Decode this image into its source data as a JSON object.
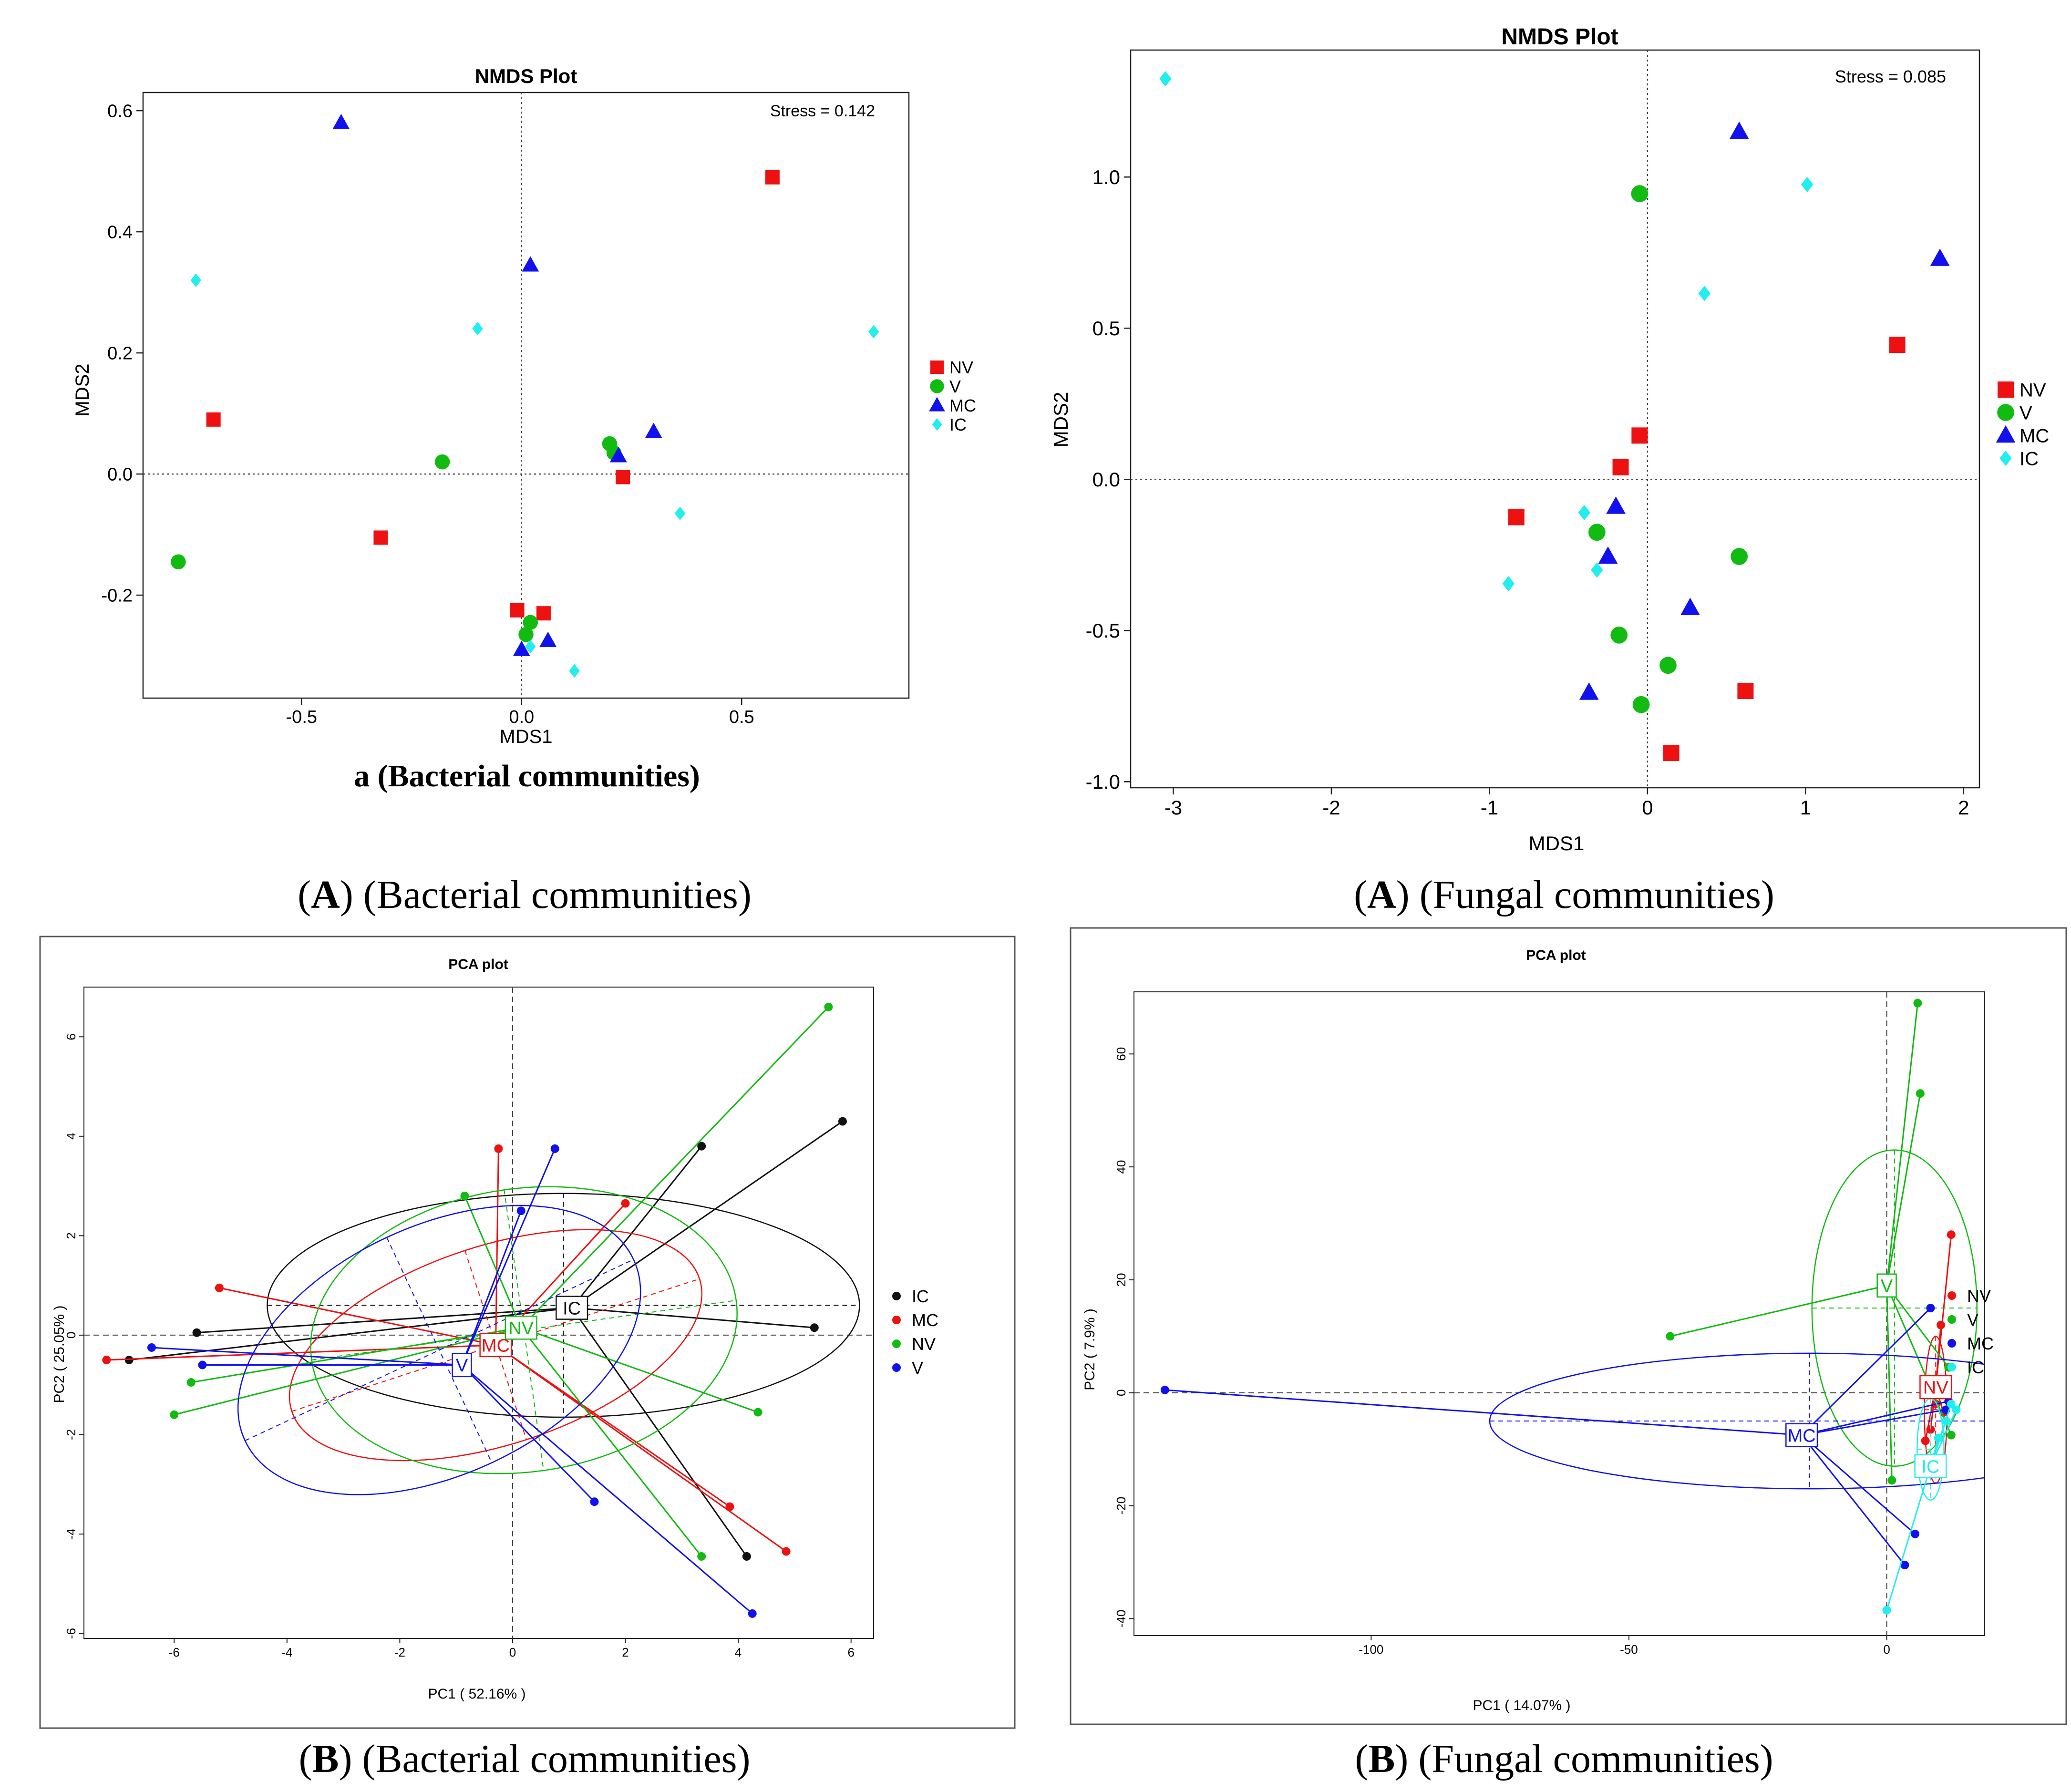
{
  "captions": {
    "a_inner": "a (Bacterial communities)",
    "tl_letter": "A",
    "tl_text": " (Bacterial communities)",
    "tr_letter": "A",
    "tr_text": " (Fungal communities)",
    "bl_letter": "B",
    "bl_text": " (Bacterial communities)",
    "br_letter": "B",
    "br_text": " (Fungal communities)"
  },
  "colors": {
    "red": "#ee1111",
    "green": "#11bb11",
    "blue": "#1111ee",
    "cyan": "#22eeee",
    "black": "#111111"
  },
  "chart_data": [
    {
      "id": "bact_nmds",
      "type": "scatter",
      "title": "NMDS Plot",
      "xlabel": "MDS1",
      "ylabel": "MDS2",
      "stress": "Stress = 0.142",
      "xlim": [
        -0.86,
        0.88
      ],
      "ylim": [
        -0.37,
        0.63
      ],
      "xticks": [
        -0.5,
        0.0,
        0.5
      ],
      "xtick_labels": [
        "-0.5",
        "0.0",
        "0.5"
      ],
      "yticks": [
        -0.2,
        0.0,
        0.2,
        0.4,
        0.6
      ],
      "ytick_labels": [
        "-0.2",
        "0.0",
        "0.2",
        "0.4",
        "0.6"
      ],
      "legend_position": "right",
      "legend": [
        "NV",
        "V",
        "MC",
        "IC"
      ],
      "series": [
        {
          "name": "NV",
          "shape": "square",
          "color": "red",
          "x": [
            0.57,
            -0.7,
            -0.32,
            0.23,
            -0.01,
            0.05
          ],
          "y": [
            0.49,
            0.09,
            -0.105,
            -0.005,
            -0.225,
            -0.23
          ]
        },
        {
          "name": "V",
          "shape": "circle",
          "color": "green",
          "x": [
            -0.18,
            -0.78,
            0.2,
            0.21,
            0.02,
            0.01
          ],
          "y": [
            0.02,
            -0.145,
            0.05,
            0.035,
            -0.245,
            -0.265
          ]
        },
        {
          "name": "MC",
          "shape": "triangle",
          "color": "blue",
          "x": [
            -0.41,
            0.02,
            0.3,
            0.22,
            0.0,
            0.06
          ],
          "y": [
            0.58,
            0.345,
            0.07,
            0.03,
            -0.29,
            -0.275
          ]
        },
        {
          "name": "IC",
          "shape": "diamond",
          "color": "cyan",
          "x": [
            -0.74,
            -0.1,
            0.8,
            0.36,
            0.12,
            0.02
          ],
          "y": [
            0.32,
            0.24,
            0.235,
            -0.065,
            -0.325,
            -0.285
          ]
        }
      ]
    },
    {
      "id": "fung_nmds",
      "type": "scatter",
      "title": "NMDS Plot",
      "xlabel": "MDS1",
      "ylabel": "MDS2",
      "stress": "Stress = 0.085",
      "xlim": [
        -3.27,
        2.1
      ],
      "ylim": [
        -1.02,
        1.42
      ],
      "xticks": [
        -3,
        -2,
        -1,
        0,
        1,
        2
      ],
      "xtick_labels": [
        "-3",
        "-2",
        "-1",
        "0",
        "1",
        "2"
      ],
      "yticks": [
        -1.0,
        -0.5,
        0.0,
        0.5,
        1.0
      ],
      "ytick_labels": [
        "-1.0",
        "-0.5",
        "0.0",
        "0.5",
        "1.0"
      ],
      "legend_position": "right",
      "legend": [
        "NV",
        "V",
        "MC",
        "IC"
      ],
      "series": [
        {
          "name": "NV",
          "shape": "square",
          "color": "red",
          "x": [
            1.58,
            -0.05,
            -0.17,
            -0.83,
            0.62,
            0.15
          ],
          "y": [
            0.445,
            0.145,
            0.04,
            -0.125,
            -0.7,
            -0.905
          ]
        },
        {
          "name": "V",
          "shape": "circle",
          "color": "green",
          "x": [
            -0.05,
            -0.32,
            0.58,
            -0.18,
            0.13,
            -0.04
          ],
          "y": [
            0.945,
            -0.175,
            -0.255,
            -0.515,
            -0.615,
            -0.745
          ]
        },
        {
          "name": "MC",
          "shape": "triangle",
          "color": "blue",
          "x": [
            0.58,
            1.85,
            -0.2,
            -0.25,
            0.27,
            -0.37
          ],
          "y": [
            1.15,
            0.73,
            -0.09,
            -0.255,
            -0.425,
            -0.705
          ]
        },
        {
          "name": "IC",
          "shape": "diamond",
          "color": "cyan",
          "x": [
            -3.05,
            1.01,
            0.36,
            -0.4,
            -0.88,
            -0.32
          ],
          "y": [
            1.325,
            0.975,
            0.615,
            -0.11,
            -0.345,
            -0.3
          ]
        }
      ]
    },
    {
      "id": "bact_pca",
      "type": "scatter",
      "title": "PCA plot",
      "xlabel": "PC1 ( 52.16% )",
      "ylabel": "PC2 ( 25.05% )",
      "xlim": [
        -7.6,
        6.4
      ],
      "ylim": [
        -6.1,
        7.0
      ],
      "xticks": [
        -6,
        -4,
        -2,
        0,
        2,
        4,
        6
      ],
      "xtick_labels": [
        "-6",
        "-4",
        "-2",
        "0",
        "2",
        "4",
        "6"
      ],
      "yticks": [
        -6,
        -4,
        -2,
        0,
        2,
        4,
        6
      ],
      "ytick_labels": [
        "-6",
        "-4",
        "-2",
        "0",
        "2",
        "4",
        "6"
      ],
      "legend_position": "right",
      "legend": [
        "IC",
        "MC",
        "NV",
        "V"
      ],
      "groups": [
        {
          "name": "IC",
          "color": "black",
          "centroid": [
            1.05,
            0.55
          ],
          "ellipse": {
            "cx": 0.9,
            "cy": 0.6,
            "rx": 5.25,
            "ry": 2.25,
            "angle": 0
          },
          "points": [
            [
              5.85,
              4.3
            ],
            [
              3.35,
              3.8
            ],
            [
              5.35,
              0.15
            ],
            [
              -5.6,
              0.05
            ],
            [
              -6.8,
              -0.5
            ],
            [
              4.15,
              -4.45
            ]
          ]
        },
        {
          "name": "MC",
          "color": "red",
          "centroid": [
            -0.3,
            -0.2
          ],
          "ellipse": {
            "cx": -0.3,
            "cy": -0.2,
            "rx": 3.8,
            "ry": 2.0,
            "angle": -18
          },
          "points": [
            [
              -0.25,
              3.75
            ],
            [
              2.0,
              2.65
            ],
            [
              -5.2,
              0.95
            ],
            [
              -7.2,
              -0.5
            ],
            [
              3.85,
              -3.45
            ],
            [
              4.85,
              -4.35
            ]
          ]
        },
        {
          "name": "NV",
          "color": "green",
          "centroid": [
            0.15,
            0.15
          ],
          "ellipse": {
            "cx": 0.2,
            "cy": 0.1,
            "rx": 3.8,
            "ry": 2.85,
            "angle": -8
          },
          "points": [
            [
              5.6,
              6.6
            ],
            [
              -0.85,
              2.8
            ],
            [
              -5.7,
              -0.95
            ],
            [
              -6.0,
              -1.6
            ],
            [
              4.35,
              -1.55
            ],
            [
              3.35,
              -4.45
            ]
          ]
        },
        {
          "name": "V",
          "color": "blue",
          "centroid": [
            -0.9,
            -0.6
          ],
          "ellipse": {
            "cx": -1.3,
            "cy": -0.3,
            "rx": 3.8,
            "ry": 2.5,
            "angle": -25
          },
          "points": [
            [
              0.75,
              3.75
            ],
            [
              0.15,
              2.5
            ],
            [
              -6.4,
              -0.25
            ],
            [
              -5.5,
              -0.6
            ],
            [
              1.45,
              -3.35
            ],
            [
              4.25,
              -5.6
            ]
          ]
        }
      ]
    },
    {
      "id": "fung_pca",
      "type": "scatter",
      "title": "PCA plot",
      "xlabel": "PC1 ( 14.07% )",
      "ylabel": "PC2 ( 7.9% )",
      "xlim": [
        -146,
        19
      ],
      "ylim": [
        -43,
        71
      ],
      "xticks": [
        -100,
        -50,
        0
      ],
      "xtick_labels": [
        "-100",
        "-50",
        "0"
      ],
      "yticks": [
        -40,
        -20,
        0,
        20,
        40,
        60
      ],
      "ytick_labels": [
        "-40",
        "-20",
        "0",
        "20",
        "40",
        "60"
      ],
      "legend_position": "right",
      "legend": [
        "NV",
        "V",
        "MC",
        "IC"
      ],
      "groups": [
        {
          "name": "NV",
          "color": "red",
          "centroid": [
            9.5,
            1.0
          ],
          "ellipse": {
            "cx": 9.5,
            "cy": -3.0,
            "rx": 2.2,
            "ry": 13.0,
            "angle": 0
          },
          "points": [
            [
              12.5,
              28.0
            ],
            [
              10.5,
              12.0
            ],
            [
              9.5,
              -2.0
            ],
            [
              8.5,
              -6.5
            ],
            [
              7.5,
              -8.5
            ],
            [
              11.0,
              -3.5
            ]
          ]
        },
        {
          "name": "V",
          "color": "green",
          "centroid": [
            0.0,
            19.0
          ],
          "ellipse": {
            "cx": 1.5,
            "cy": 15.0,
            "rx": 16.0,
            "ry": 28.0,
            "angle": 0
          },
          "points": [
            [
              6.0,
              69.0
            ],
            [
              6.5,
              53.0
            ],
            [
              -42.0,
              10.0
            ],
            [
              12.0,
              4.5
            ],
            [
              12.5,
              -7.5
            ],
            [
              1.0,
              -15.5
            ]
          ]
        },
        {
          "name": "MC",
          "color": "blue",
          "centroid": [
            -16.5,
            -7.5
          ],
          "ellipse": {
            "cx": -15.0,
            "cy": -5.0,
            "rx": 62.0,
            "ry": 12.0,
            "angle": 0
          },
          "points": [
            [
              -140.0,
              0.5
            ],
            [
              8.5,
              15.0
            ],
            [
              12.0,
              -1.5
            ],
            [
              11.5,
              -3.0
            ],
            [
              5.5,
              -25.0
            ],
            [
              3.5,
              -30.5
            ]
          ]
        },
        {
          "name": "IC",
          "color": "cyan",
          "centroid": [
            8.5,
            -13.0
          ],
          "ellipse": {
            "cx": 8.5,
            "cy": -10.0,
            "rx": 2.6,
            "ry": 9.0,
            "angle": 0
          },
          "points": [
            [
              12.5,
              -2.0
            ],
            [
              13.5,
              -3.0
            ],
            [
              11.5,
              -5.0
            ],
            [
              10.0,
              -8.0
            ],
            [
              8.0,
              -12.0
            ],
            [
              0.0,
              -38.5
            ]
          ]
        }
      ]
    }
  ]
}
